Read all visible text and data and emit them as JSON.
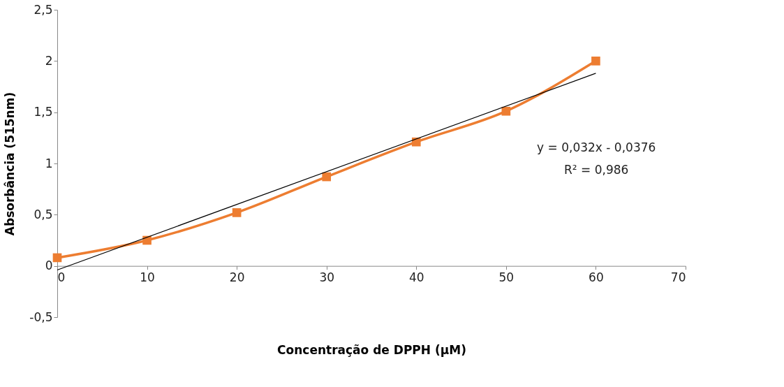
{
  "chart_data": {
    "type": "line",
    "xlabel": "Concentração de DPPH (µM)",
    "ylabel": "Absorbância (515nm)",
    "xlim": [
      0,
      70
    ],
    "xticks": [
      0,
      10,
      20,
      30,
      40,
      50,
      60,
      70
    ],
    "ylim": [
      -0.5,
      2.5
    ],
    "yticks": [
      {
        "value": -0.5,
        "label": "-0,5"
      },
      0,
      {
        "value": 0.5,
        "label": "0,5"
      },
      1,
      {
        "value": 1.5,
        "label": "1,5"
      },
      2,
      {
        "value": 2.5,
        "label": "2,5"
      }
    ],
    "series": [
      {
        "color": "#ed7d31",
        "x": [
          0,
          10,
          20,
          30,
          40,
          50,
          60
        ],
        "values": [
          0.08,
          0.25,
          0.52,
          0.87,
          1.21,
          1.51,
          2.0
        ],
        "marker": "square"
      },
      {
        "type": "line",
        "color": "#000000",
        "x": [
          0,
          60
        ],
        "values": [
          -0.04,
          1.88
        ],
        "marker": "none"
      }
    ],
    "annotations": [
      "y = 0,032x - 0,0376",
      "R² = 0,986"
    ],
    "grid": false
  }
}
